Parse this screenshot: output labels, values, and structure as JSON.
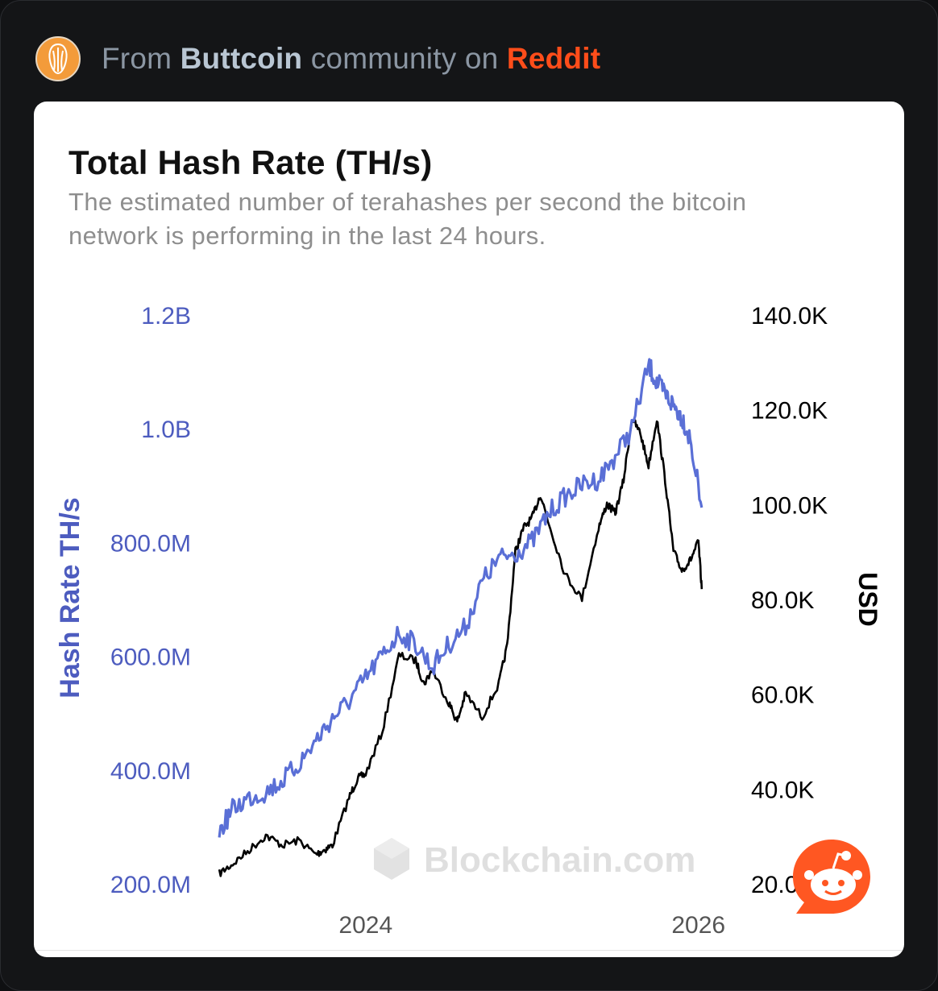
{
  "header": {
    "prefix": "From",
    "community": "Buttcoin",
    "middle": "community on",
    "platform": "Reddit"
  },
  "chart": {
    "title": "Total Hash Rate (TH/s)",
    "subtitle": "The estimated number of terahashes per second the bitcoin network is performing in the last 24 hours.",
    "watermark": "Blockchain.com"
  },
  "colors": {
    "hash_rate_series": "#5a6fd6",
    "price_series": "#000000",
    "left_axis_text": "#4d5cbf",
    "platform_accent": "#ff4d1a",
    "background": "#141517"
  },
  "icons": [
    "subreddit-avatar-icon",
    "blockchain-logo-icon",
    "reddit-snoo-icon"
  ],
  "chart_data": {
    "type": "line",
    "title": "Total Hash Rate (TH/s)",
    "subtitle": "The estimated number of terahashes per second the bitcoin network is performing in the last 24 hours.",
    "xlabel": "",
    "x_ticks": [
      "2024",
      "2026"
    ],
    "x_tick_values": [
      2024.0,
      2026.0
    ],
    "xlim": [
      2023.1,
      2026.2
    ],
    "y_left": {
      "label": "Hash Rate TH/s",
      "ticks": [
        "200.0M",
        "400.0M",
        "600.0M",
        "800.0M",
        "1.0B",
        "1.2B"
      ],
      "tick_values": [
        200000000,
        400000000,
        600000000,
        800000000,
        1000000000,
        1200000000
      ],
      "lim": [
        200000000,
        1200000000
      ]
    },
    "y_right": {
      "label": "USD",
      "ticks": [
        "20.0K",
        "40.0K",
        "60.0K",
        "80.0K",
        "100.0K",
        "120.0K",
        "140.0K"
      ],
      "tick_values": [
        20000,
        40000,
        60000,
        80000,
        100000,
        120000,
        140000
      ],
      "lim": [
        20000,
        140000
      ]
    },
    "legend": "none",
    "grid": false,
    "series": [
      {
        "axis": "left",
        "x": [
          2023.12,
          2023.2,
          2023.3,
          2023.4,
          2023.5,
          2023.6,
          2023.7,
          2023.8,
          2023.9,
          2024.0,
          2024.1,
          2024.2,
          2024.3,
          2024.4,
          2024.5,
          2024.6,
          2024.7,
          2024.8,
          2024.9,
          2025.0,
          2025.1,
          2025.2,
          2025.3,
          2025.4,
          2025.5,
          2025.6,
          2025.7,
          2025.75,
          2025.8,
          2025.85,
          2025.9,
          2025.95,
          2026.02
        ],
        "values": [
          290000000,
          330000000,
          350000000,
          360000000,
          380000000,
          410000000,
          450000000,
          490000000,
          520000000,
          560000000,
          600000000,
          640000000,
          620000000,
          580000000,
          620000000,
          650000000,
          730000000,
          770000000,
          780000000,
          800000000,
          850000000,
          880000000,
          900000000,
          910000000,
          950000000,
          1000000000,
          1110000000,
          1080000000,
          1060000000,
          1040000000,
          1020000000,
          980000000,
          860000000
        ]
      },
      {
        "axis": "right",
        "x": [
          2023.12,
          2023.2,
          2023.3,
          2023.4,
          2023.5,
          2023.6,
          2023.7,
          2023.75,
          2023.8,
          2023.9,
          2023.95,
          2024.0,
          2024.1,
          2024.2,
          2024.3,
          2024.35,
          2024.4,
          2024.5,
          2024.55,
          2024.6,
          2024.7,
          2024.8,
          2024.85,
          2024.9,
          2024.95,
          2025.0,
          2025.05,
          2025.1,
          2025.2,
          2025.3,
          2025.4,
          2025.45,
          2025.5,
          2025.55,
          2025.6,
          2025.65,
          2025.7,
          2025.75,
          2025.8,
          2025.85,
          2025.9,
          2025.95,
          2026.0,
          2026.02
        ],
        "values": [
          22000,
          24000,
          27000,
          30000,
          28000,
          29000,
          26000,
          27000,
          28000,
          38000,
          42000,
          43000,
          52000,
          68000,
          67000,
          62000,
          65000,
          58000,
          54000,
          60000,
          55000,
          62000,
          70000,
          90000,
          95000,
          97000,
          102000,
          96000,
          85000,
          80000,
          95000,
          100000,
          98000,
          105000,
          118000,
          115000,
          108000,
          118000,
          105000,
          90000,
          86000,
          88000,
          92000,
          82000
        ]
      }
    ]
  }
}
